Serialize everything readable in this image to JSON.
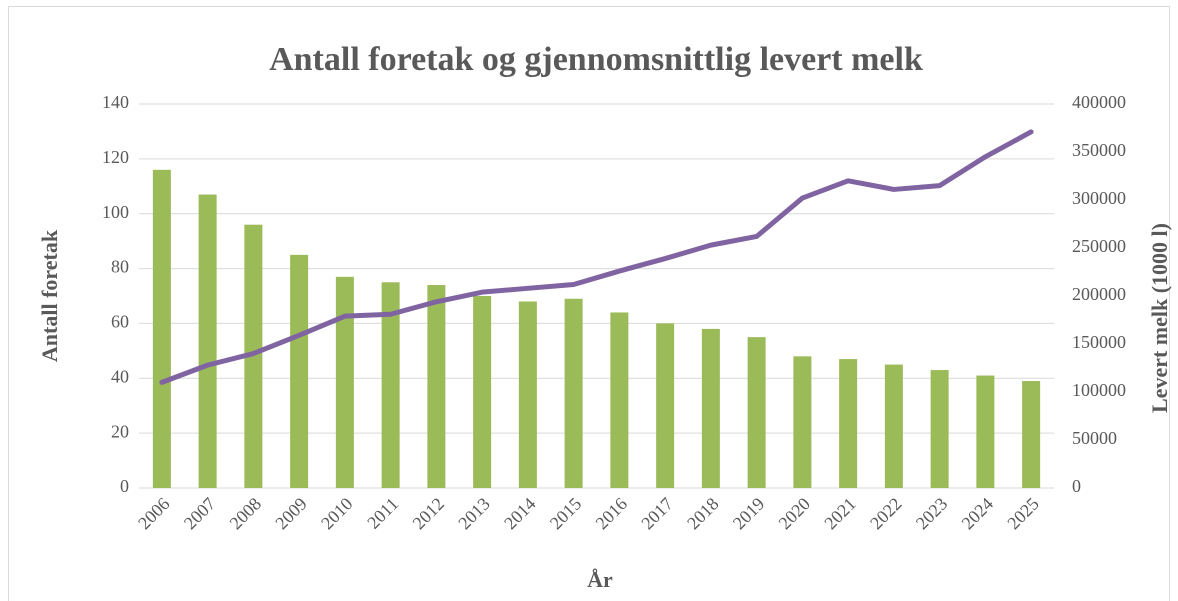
{
  "chart_data": {
    "type": "bar-line",
    "title": "Antall foretak og gjennomsnittlig levert melk",
    "x_label": "År",
    "y_label": "Antall foretak",
    "y2_label": "Levert melk (1000 l)",
    "categories": [
      "2006",
      "2007",
      "2008",
      "2009",
      "2010",
      "2011",
      "2012",
      "2013",
      "2014",
      "2015",
      "2016",
      "2017",
      "2018",
      "2019",
      "2020",
      "2021",
      "2022",
      "2023",
      "2024",
      "2025"
    ],
    "series": [
      {
        "type": "bar",
        "color": "#9bbb59",
        "values": [
          116,
          107,
          96,
          85,
          77,
          75,
          74,
          70,
          68,
          69,
          64,
          60,
          58,
          55,
          48,
          47,
          45,
          43,
          41,
          39
        ]
      },
      {
        "type": "line",
        "axis": "y2",
        "color": "#8064a2",
        "values": [
          110000,
          128000,
          140000,
          159000,
          179000,
          181000,
          194000,
          204000,
          208000,
          212000,
          226000,
          239000,
          253000,
          262000,
          302000,
          320000,
          311000,
          315000,
          345000,
          371000
        ]
      }
    ],
    "ylim": [
      0,
      140
    ],
    "yticks": [
      0,
      20,
      40,
      60,
      80,
      100,
      120,
      140
    ],
    "y2lim": [
      0,
      400000
    ],
    "y2ticks": [
      0,
      50000,
      100000,
      150000,
      200000,
      250000,
      300000,
      350000,
      400000
    ],
    "grid": true
  }
}
